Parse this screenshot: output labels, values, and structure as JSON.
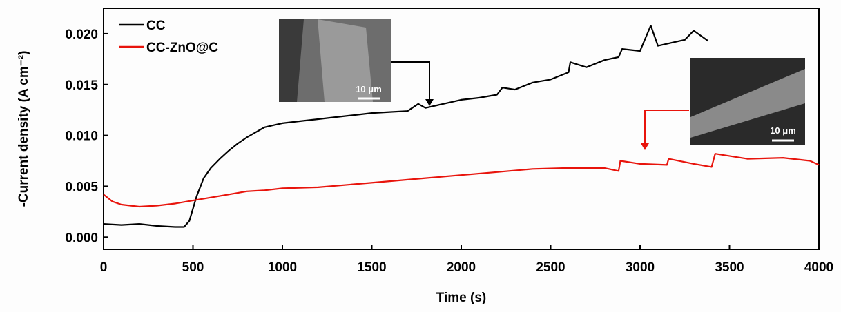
{
  "chart_data": {
    "type": "line",
    "x_label": "Time (s)",
    "y_label": "-Current density (A cm⁻²)",
    "xlim": [
      0,
      4000
    ],
    "ylim": [
      -0.0012,
      0.0225
    ],
    "xticks": [
      0,
      500,
      1000,
      1500,
      2000,
      2500,
      3000,
      3500,
      4000
    ],
    "yticks": [
      {
        "value": 0,
        "label": "0.000"
      },
      {
        "value": 0.005,
        "label": "0.005"
      },
      {
        "value": 0.01,
        "label": "0.010"
      },
      {
        "value": 0.015,
        "label": "0.015"
      },
      {
        "value": 0.02,
        "label": "0.020"
      }
    ],
    "legend": "upper left",
    "series": [
      {
        "name": "CC",
        "color": "#000000",
        "x": [
          0,
          100,
          200,
          300,
          400,
          450,
          480,
          520,
          560,
          600,
          650,
          700,
          750,
          800,
          850,
          900,
          950,
          1000,
          1100,
          1200,
          1300,
          1400,
          1500,
          1600,
          1700,
          1760,
          1800,
          1900,
          2000,
          2100,
          2200,
          2230,
          2300,
          2400,
          2500,
          2600,
          2610,
          2700,
          2800,
          2880,
          2900,
          3000,
          3060,
          3100,
          3200,
          3250,
          3300,
          3380
        ],
        "values": [
          0.0013,
          0.0012,
          0.0013,
          0.0011,
          0.001,
          0.001,
          0.0016,
          0.004,
          0.0058,
          0.0068,
          0.0077,
          0.0085,
          0.0092,
          0.0098,
          0.0103,
          0.0108,
          0.011,
          0.0112,
          0.0114,
          0.0116,
          0.0118,
          0.012,
          0.0122,
          0.0123,
          0.0124,
          0.0131,
          0.0127,
          0.0131,
          0.0135,
          0.0137,
          0.014,
          0.0147,
          0.0145,
          0.0152,
          0.0155,
          0.0162,
          0.0172,
          0.0167,
          0.0174,
          0.0177,
          0.0185,
          0.0183,
          0.0208,
          0.0188,
          0.0192,
          0.0194,
          0.0203,
          0.0193
        ]
      },
      {
        "name": "CC-ZnO@C",
        "color": "#e8140c",
        "x": [
          0,
          50,
          100,
          200,
          300,
          400,
          500,
          600,
          700,
          800,
          900,
          1000,
          1200,
          1400,
          1600,
          1800,
          2000,
          2200,
          2400,
          2600,
          2800,
          2880,
          2890,
          3000,
          3150,
          3160,
          3300,
          3400,
          3420,
          3600,
          3800,
          3950,
          4000
        ],
        "values": [
          0.0042,
          0.0035,
          0.0032,
          0.003,
          0.0031,
          0.0033,
          0.0036,
          0.0039,
          0.0042,
          0.0045,
          0.0046,
          0.0048,
          0.0049,
          0.0052,
          0.0055,
          0.0058,
          0.0061,
          0.0064,
          0.0067,
          0.0068,
          0.0068,
          0.0065,
          0.0075,
          0.0072,
          0.0071,
          0.0077,
          0.0072,
          0.0069,
          0.0082,
          0.0077,
          0.0078,
          0.0075,
          0.0071
        ]
      }
    ],
    "insets": [
      {
        "scale_label": "10 μm"
      },
      {
        "scale_label": "10 μm"
      }
    ]
  }
}
